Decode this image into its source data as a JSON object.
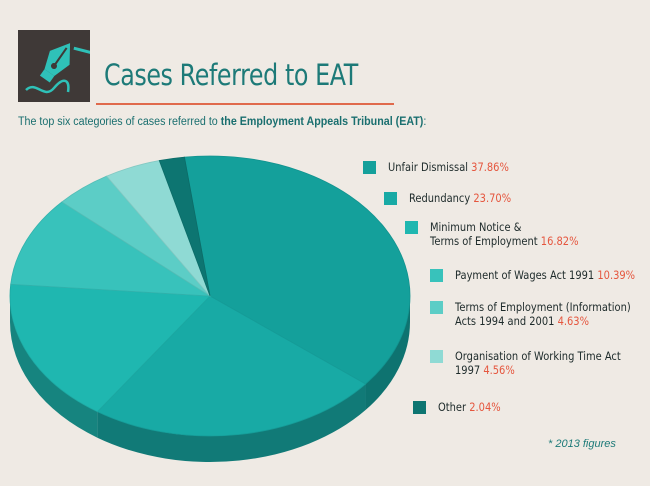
{
  "header": {
    "title": "Cases Referred to EAT",
    "subtitle_prefix": "The top six categories of cases referred to",
    "subtitle_bold": "the Employment Appeals Tribunal (EAT)",
    "subtitle_suffix": ":",
    "icon": "fountain-pen-nib-icon"
  },
  "footnote": "* 2013 figures",
  "colors": {
    "accent": "#e06a4c",
    "title": "#1d7a78",
    "percent": "#e5563e"
  },
  "legend": [
    {
      "label": "Unfair Dismissal",
      "label2": "",
      "value": "37.86%"
    },
    {
      "label": "Redundancy",
      "label2": "",
      "value": "23.70%"
    },
    {
      "label": "Minimum Notice &",
      "label2": "Terms of Employment",
      "value": "16.82%"
    },
    {
      "label": "Payment of Wages Act 1991",
      "label2": "",
      "value": "10.39%"
    },
    {
      "label": "Terms of Employment (Information)",
      "label2": "Acts 1994 and 2001",
      "value": "4.63%"
    },
    {
      "label": "Organisation of Working Time Act",
      "label2": "1997",
      "value": "4.56%"
    },
    {
      "label": "Other",
      "label2": "",
      "value": "2.04%"
    }
  ],
  "chart_data": {
    "type": "pie",
    "style": "3d",
    "title": "Cases Referred to EAT",
    "categories": [
      "Unfair Dismissal",
      "Redundancy",
      "Minimum Notice & Terms of Employment",
      "Payment of Wages Act 1991",
      "Terms of Employment (Information) Acts 1994 and 2001",
      "Organisation of Working Time Act 1997",
      "Other"
    ],
    "values": [
      37.86,
      23.7,
      16.82,
      10.39,
      4.63,
      4.56,
      2.04
    ],
    "unit": "%",
    "colors": [
      "#14a09b",
      "#18aaa5",
      "#1fb7b0",
      "#38c2bb",
      "#5ccdc6",
      "#8fdad4",
      "#0d7571"
    ],
    "legend_position": "right"
  }
}
